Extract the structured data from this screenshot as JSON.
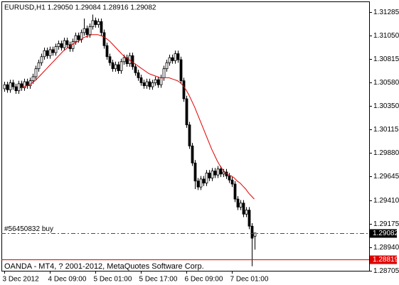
{
  "chart_data": {
    "type": "candlestick",
    "title": "EURUSD,H1  1.29050 1.29084 1.28916 1.29082",
    "footer": "OANDA - MT4, ? 2001-2012, MetaQuotes Software Corp.",
    "categories": [
      "3 Dec 2012",
      null,
      null,
      null,
      null,
      null,
      null,
      null,
      null,
      null,
      null,
      null,
      null,
      null,
      null,
      null,
      "4 Dec 09:00",
      null,
      null,
      null,
      null,
      null,
      null,
      null,
      null,
      null,
      null,
      null,
      null,
      null,
      null,
      null,
      "5 Dec 01:00",
      null,
      null,
      null,
      null,
      null,
      null,
      null,
      null,
      null,
      null,
      null,
      null,
      null,
      null,
      null,
      "5 Dec 17:00",
      null,
      null,
      null,
      null,
      null,
      null,
      null,
      null,
      null,
      null,
      null,
      null,
      null,
      null,
      null,
      "6 Dec 09:00",
      null,
      null,
      null,
      null,
      null,
      null,
      null,
      null,
      null,
      null,
      null,
      null,
      null,
      null,
      null,
      "7 Dec 01:00",
      null,
      null,
      null,
      null,
      null,
      null,
      null,
      null
    ],
    "open": [
      1.3052,
      1.3056,
      1.3051,
      1.3058,
      1.3054,
      1.305,
      1.3057,
      1.3053,
      1.3059,
      1.3055,
      1.306,
      1.3064,
      1.3072,
      1.3078,
      1.3084,
      1.309,
      1.3085,
      1.3091,
      1.3088,
      1.3094,
      1.3097,
      1.3093,
      1.31,
      1.3096,
      1.3092,
      1.3099,
      1.3105,
      1.3101,
      1.3108,
      1.3112,
      1.3106,
      1.3114,
      1.312,
      1.3116,
      1.3119,
      1.3108,
      1.3095,
      1.3084,
      1.3078,
      1.3072,
      1.3076,
      1.307,
      1.3079,
      1.3083,
      1.3077,
      1.3085,
      1.3074,
      1.3068,
      1.3063,
      1.3058,
      1.3055,
      1.3059,
      1.3054,
      1.3058,
      1.3061,
      1.3056,
      1.3063,
      1.3072,
      1.3078,
      1.3083,
      1.308,
      1.3087,
      1.3081,
      1.306,
      1.3042,
      1.3016,
      1.2995,
      1.2978,
      1.296,
      1.2954,
      1.2962,
      1.2958,
      1.2968,
      1.2963,
      1.297,
      1.2966,
      1.2972,
      1.2967,
      1.2969,
      1.2965,
      1.2961,
      1.2957,
      1.2942,
      1.2934,
      1.2938,
      1.2927,
      1.2931,
      1.2915,
      1.2905
    ],
    "high": [
      1.3059,
      1.3059,
      1.3061,
      1.3061,
      1.3057,
      1.306,
      1.306,
      1.3062,
      1.3062,
      1.3063,
      1.3067,
      1.3075,
      1.3081,
      1.3087,
      1.3093,
      1.3093,
      1.3094,
      1.3094,
      1.3097,
      1.31,
      1.31,
      1.3103,
      1.3103,
      1.3099,
      1.3102,
      1.3108,
      1.3108,
      1.3111,
      1.3122,
      1.3115,
      1.3117,
      1.3126,
      1.3123,
      1.3122,
      1.3122,
      1.3111,
      1.3098,
      1.3087,
      1.3081,
      1.3079,
      1.3079,
      1.3082,
      1.3086,
      1.3086,
      1.3088,
      1.3088,
      1.3077,
      1.3071,
      1.3066,
      1.3061,
      1.3062,
      1.3062,
      1.3061,
      1.3064,
      1.3064,
      1.3066,
      1.3075,
      1.3081,
      1.3086,
      1.3086,
      1.309,
      1.309,
      1.3084,
      1.3063,
      1.3045,
      1.3019,
      1.2998,
      1.2981,
      1.2963,
      1.2965,
      1.2965,
      1.2971,
      1.2971,
      1.2973,
      1.2973,
      1.2975,
      1.2975,
      1.2972,
      1.2972,
      1.2968,
      1.2964,
      1.296,
      1.2945,
      1.2941,
      1.2941,
      1.2934,
      1.2934,
      1.2918,
      1.29084
    ],
    "low": [
      1.3049,
      1.3048,
      1.3048,
      1.3051,
      1.3047,
      1.3047,
      1.305,
      1.305,
      1.3052,
      1.3052,
      1.3057,
      1.3061,
      1.3069,
      1.3075,
      1.3081,
      1.3082,
      1.3082,
      1.3085,
      1.3085,
      1.3091,
      1.309,
      1.309,
      1.3093,
      1.3089,
      1.3089,
      1.3096,
      1.3098,
      1.3098,
      1.3105,
      1.3103,
      1.3103,
      1.3111,
      1.3113,
      1.3113,
      1.3105,
      1.3092,
      1.3081,
      1.3075,
      1.3069,
      1.3069,
      1.3067,
      1.3067,
      1.3076,
      1.3074,
      1.3074,
      1.3071,
      1.3065,
      1.306,
      1.3055,
      1.3052,
      1.3052,
      1.3051,
      1.3051,
      1.3055,
      1.3053,
      1.3053,
      1.306,
      1.3069,
      1.3075,
      1.3077,
      1.3077,
      1.3078,
      1.3057,
      1.3039,
      1.3013,
      1.2992,
      1.2975,
      1.2952,
      1.2951,
      1.2951,
      1.2955,
      1.2955,
      1.296,
      1.296,
      1.2963,
      1.2963,
      1.2964,
      1.2964,
      1.2962,
      1.2958,
      1.2954,
      1.2939,
      1.2931,
      1.2931,
      1.2924,
      1.2924,
      1.2912,
      1.2875,
      1.28916
    ],
    "close": [
      1.3056,
      1.3051,
      1.3058,
      1.3054,
      1.305,
      1.3057,
      1.3053,
      1.3059,
      1.3055,
      1.306,
      1.3064,
      1.3072,
      1.3078,
      1.3084,
      1.309,
      1.3085,
      1.3091,
      1.3088,
      1.3094,
      1.3097,
      1.3093,
      1.31,
      1.3096,
      1.3092,
      1.3099,
      1.3105,
      1.3101,
      1.3108,
      1.3112,
      1.3106,
      1.3114,
      1.312,
      1.3116,
      1.3119,
      1.3108,
      1.3095,
      1.3084,
      1.3078,
      1.3072,
      1.3076,
      1.307,
      1.3079,
      1.3083,
      1.3077,
      1.3085,
      1.3074,
      1.3068,
      1.3063,
      1.3058,
      1.3055,
      1.3059,
      1.3054,
      1.3058,
      1.3061,
      1.3056,
      1.3063,
      1.3072,
      1.3078,
      1.3083,
      1.308,
      1.3087,
      1.3081,
      1.306,
      1.3042,
      1.3016,
      1.2995,
      1.2978,
      1.296,
      1.2954,
      1.2962,
      1.2958,
      1.2968,
      1.2963,
      1.297,
      1.2966,
      1.2972,
      1.2967,
      1.2969,
      1.2965,
      1.2961,
      1.2957,
      1.2942,
      1.2934,
      1.2938,
      1.2927,
      1.2931,
      1.2915,
      1.2903,
      1.29082
    ],
    "candle_color": "#000000",
    "ma": {
      "color": "#e00000",
      "values": [
        null,
        null,
        null,
        null,
        null,
        null,
        1.3053,
        1.3054,
        1.3055,
        1.3056,
        1.3058,
        1.306,
        1.3063,
        1.3066,
        1.3069,
        1.3072,
        1.3075,
        1.3078,
        1.3081,
        1.3084,
        1.3087,
        1.309,
        1.3092,
        1.3094,
        1.3096,
        1.3098,
        1.3099,
        1.3101,
        1.3103,
        1.3104,
        1.3105,
        1.3106,
        1.3106,
        1.3106,
        1.3105,
        1.3104,
        1.3102,
        1.31,
        1.3097,
        1.3094,
        1.3091,
        1.3088,
        1.3085,
        1.3083,
        1.3081,
        1.3079,
        1.3077,
        1.3075,
        1.3073,
        1.3071,
        1.3069,
        1.3067,
        1.3066,
        1.3065,
        1.3064,
        1.3063,
        1.3063,
        1.3063,
        1.3063,
        1.3062,
        1.3061,
        1.306,
        1.3058,
        1.3055,
        1.3051,
        1.3046,
        1.304,
        1.3034,
        1.3027,
        1.302,
        1.3013,
        1.3006,
        1.2999,
        1.2992,
        1.2986,
        1.298,
        1.2975,
        1.2971,
        1.2968,
        1.2966,
        1.2965,
        1.2963,
        1.296,
        1.2958,
        1.2955,
        1.2952,
        1.2948,
        1.2945,
        1.2942
      ]
    },
    "ylim": [
      1.28705,
      1.31391
    ],
    "yticks": [
      1.31285,
      {
        "value": 1.3105,
        "label": "1.31050"
      },
      1.30815,
      {
        "value": 1.3058,
        "label": "1.30580"
      },
      {
        "value": 1.3035,
        "label": "1.30350"
      },
      1.30115,
      {
        "value": 1.2988,
        "label": "1.29880"
      },
      1.29645,
      {
        "value": 1.2941,
        "label": "1.29410"
      },
      1.29175,
      {
        "value": 1.2894,
        "label": "1.28940"
      },
      1.28705
    ],
    "levels": [
      {
        "label": "#56450832 buy",
        "value": 1.29082,
        "value_label": "1.29082",
        "color": "#008000",
        "box_color": "#000000"
      },
      {
        "value": 1.28819,
        "value_label": "1.28819",
        "color": "#e00000",
        "box_color": "#e00000"
      }
    ]
  }
}
